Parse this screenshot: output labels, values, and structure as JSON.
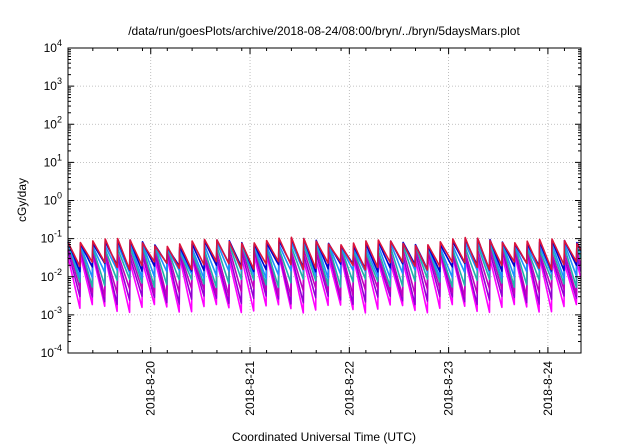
{
  "chart_data": {
    "type": "line",
    "title": "/data/run/goesPlots/archive/2018-08-24/08:00/bryn/../bryn/5daysMars.plot",
    "xlabel": "Coordinated Universal Time (UTC)",
    "ylabel": "cGy/day",
    "yscale": "log",
    "ylim": [
      0.0001,
      10000
    ],
    "xlim": [
      "2018-08-19 04:00",
      "2018-08-24 08:00"
    ],
    "grid": true,
    "legend": "none",
    "x_ticks": [
      "2018-8-20",
      "2018-8-21",
      "2018-8-22",
      "2018-8-23",
      "2018-8-24"
    ],
    "y_ticks": [
      {
        "base": "10",
        "exp": "-4"
      },
      {
        "base": "10",
        "exp": "-3"
      },
      {
        "base": "10",
        "exp": "-2"
      },
      {
        "base": "10",
        "exp": "-1"
      },
      {
        "base": "10",
        "exp": "0"
      },
      {
        "base": "10",
        "exp": "1"
      },
      {
        "base": "10",
        "exp": "2"
      },
      {
        "base": "10",
        "exp": "3"
      },
      {
        "base": "10",
        "exp": "4"
      }
    ],
    "pattern": {
      "period_hours": 3,
      "cycles": 41
    },
    "series": [
      {
        "color": "#ff00ff",
        "peak": 0.03,
        "trough": 0.0015
      },
      {
        "color": "#9400d3",
        "peak": 0.04,
        "trough": 0.0025
      },
      {
        "color": "#c000c0",
        "peak": 0.05,
        "trough": 0.004
      },
      {
        "color": "#20b2aa",
        "peak": 0.06,
        "trough": 0.007
      },
      {
        "color": "#1e90ff",
        "peak": 0.07,
        "trough": 0.012
      },
      {
        "color": "#0000cd",
        "peak": 0.08,
        "trough": 0.018
      },
      {
        "color": "#dc143c",
        "peak": 0.085,
        "trough": 0.02
      }
    ]
  }
}
